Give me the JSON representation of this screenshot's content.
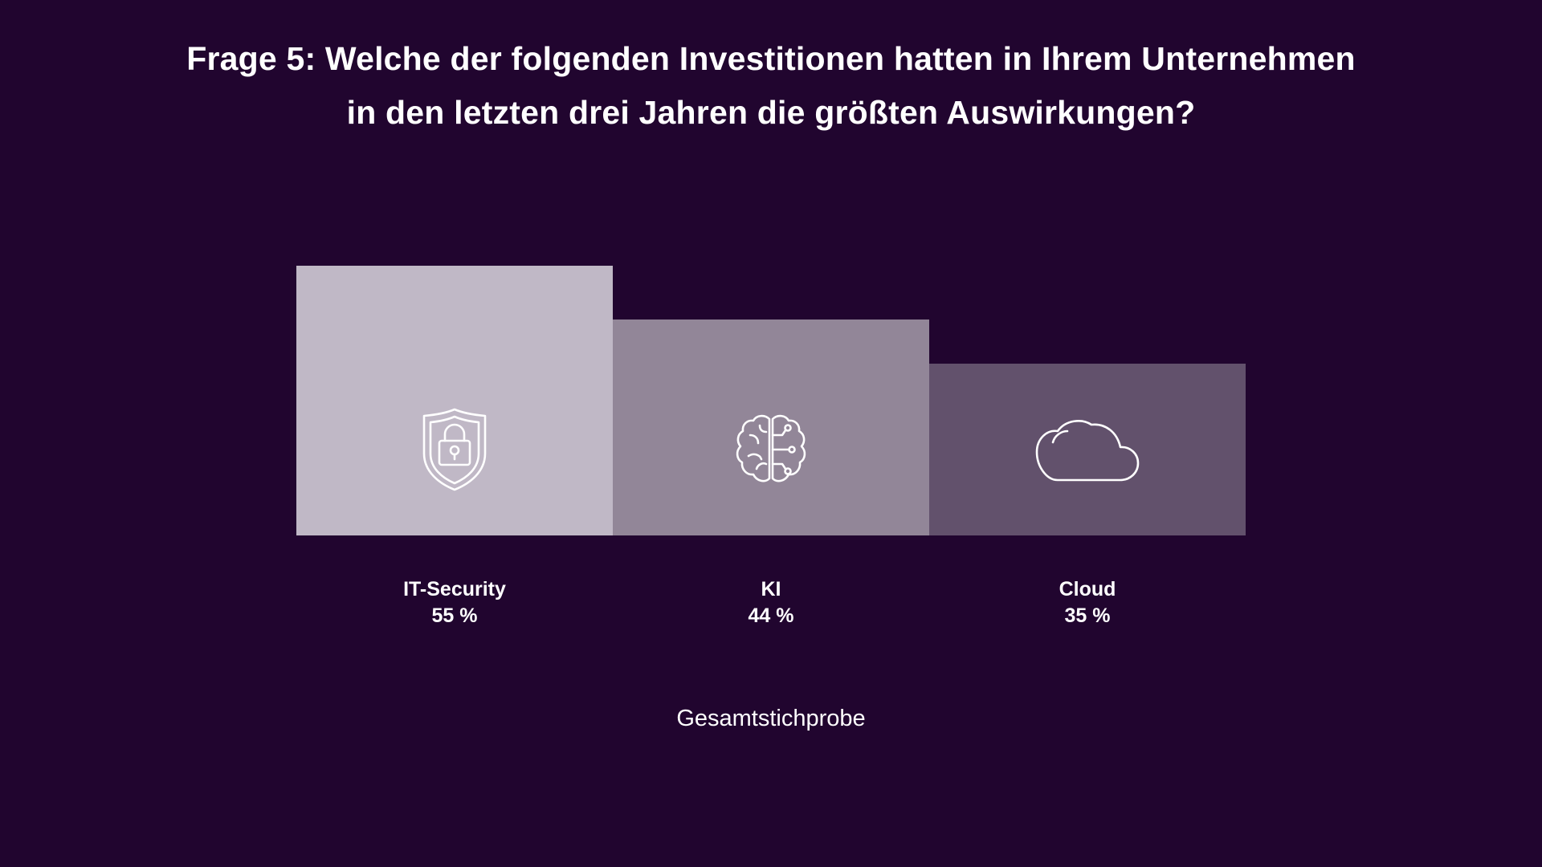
{
  "title_line1": "Frage 5: Welche der folgenden Investitionen hatten in Ihrem Unternehmen",
  "title_line2": "in den letzten drei Jahren die größten Auswirkungen?",
  "footnote": "Gesamtstichprobe",
  "colors": {
    "background": "#21052f",
    "bars": [
      "#c0b8c6",
      "#928698",
      "#62516c"
    ],
    "icon_stroke": "#ffffff"
  },
  "chart_data": {
    "type": "bar",
    "categories": [
      "IT-Security",
      "KI",
      "Cloud"
    ],
    "values": [
      55,
      44,
      35
    ],
    "value_labels": [
      "55 %",
      "44 %",
      "35 %"
    ],
    "icons": [
      "shield-lock-icon",
      "brain-circuit-icon",
      "cloud-icon"
    ],
    "title": "Frage 5: Welche der folgenden Investitionen hatten in Ihrem Unternehmen in den letzten drei Jahren die größten Auswirkungen?",
    "xlabel": "",
    "ylabel": "",
    "ylim": [
      0,
      55
    ],
    "grid": false,
    "legend": "none"
  }
}
